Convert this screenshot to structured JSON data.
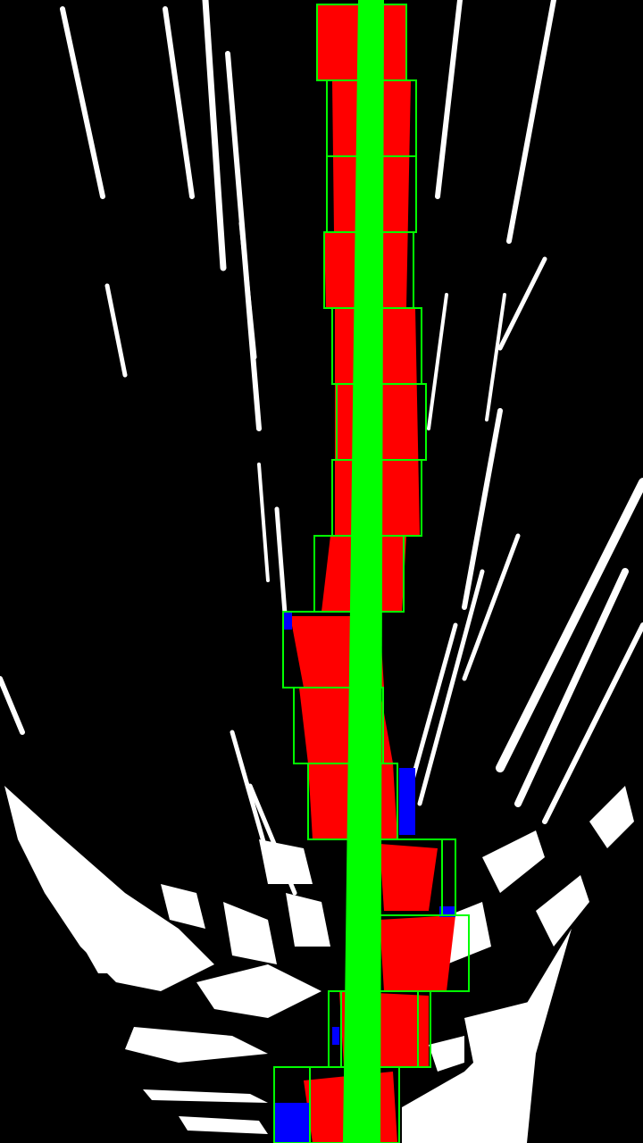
{
  "colors": {
    "background": "#000000",
    "road_marking": "#ffffff",
    "lane_pixels": "#ff0000",
    "secondary_pixels": "#0000ff",
    "search_window": "#00ff00",
    "fitted_lane": "#00ff00"
  },
  "visualization": {
    "kind": "lane-detection-sliding-window-debug",
    "search_window_count": 15
  }
}
